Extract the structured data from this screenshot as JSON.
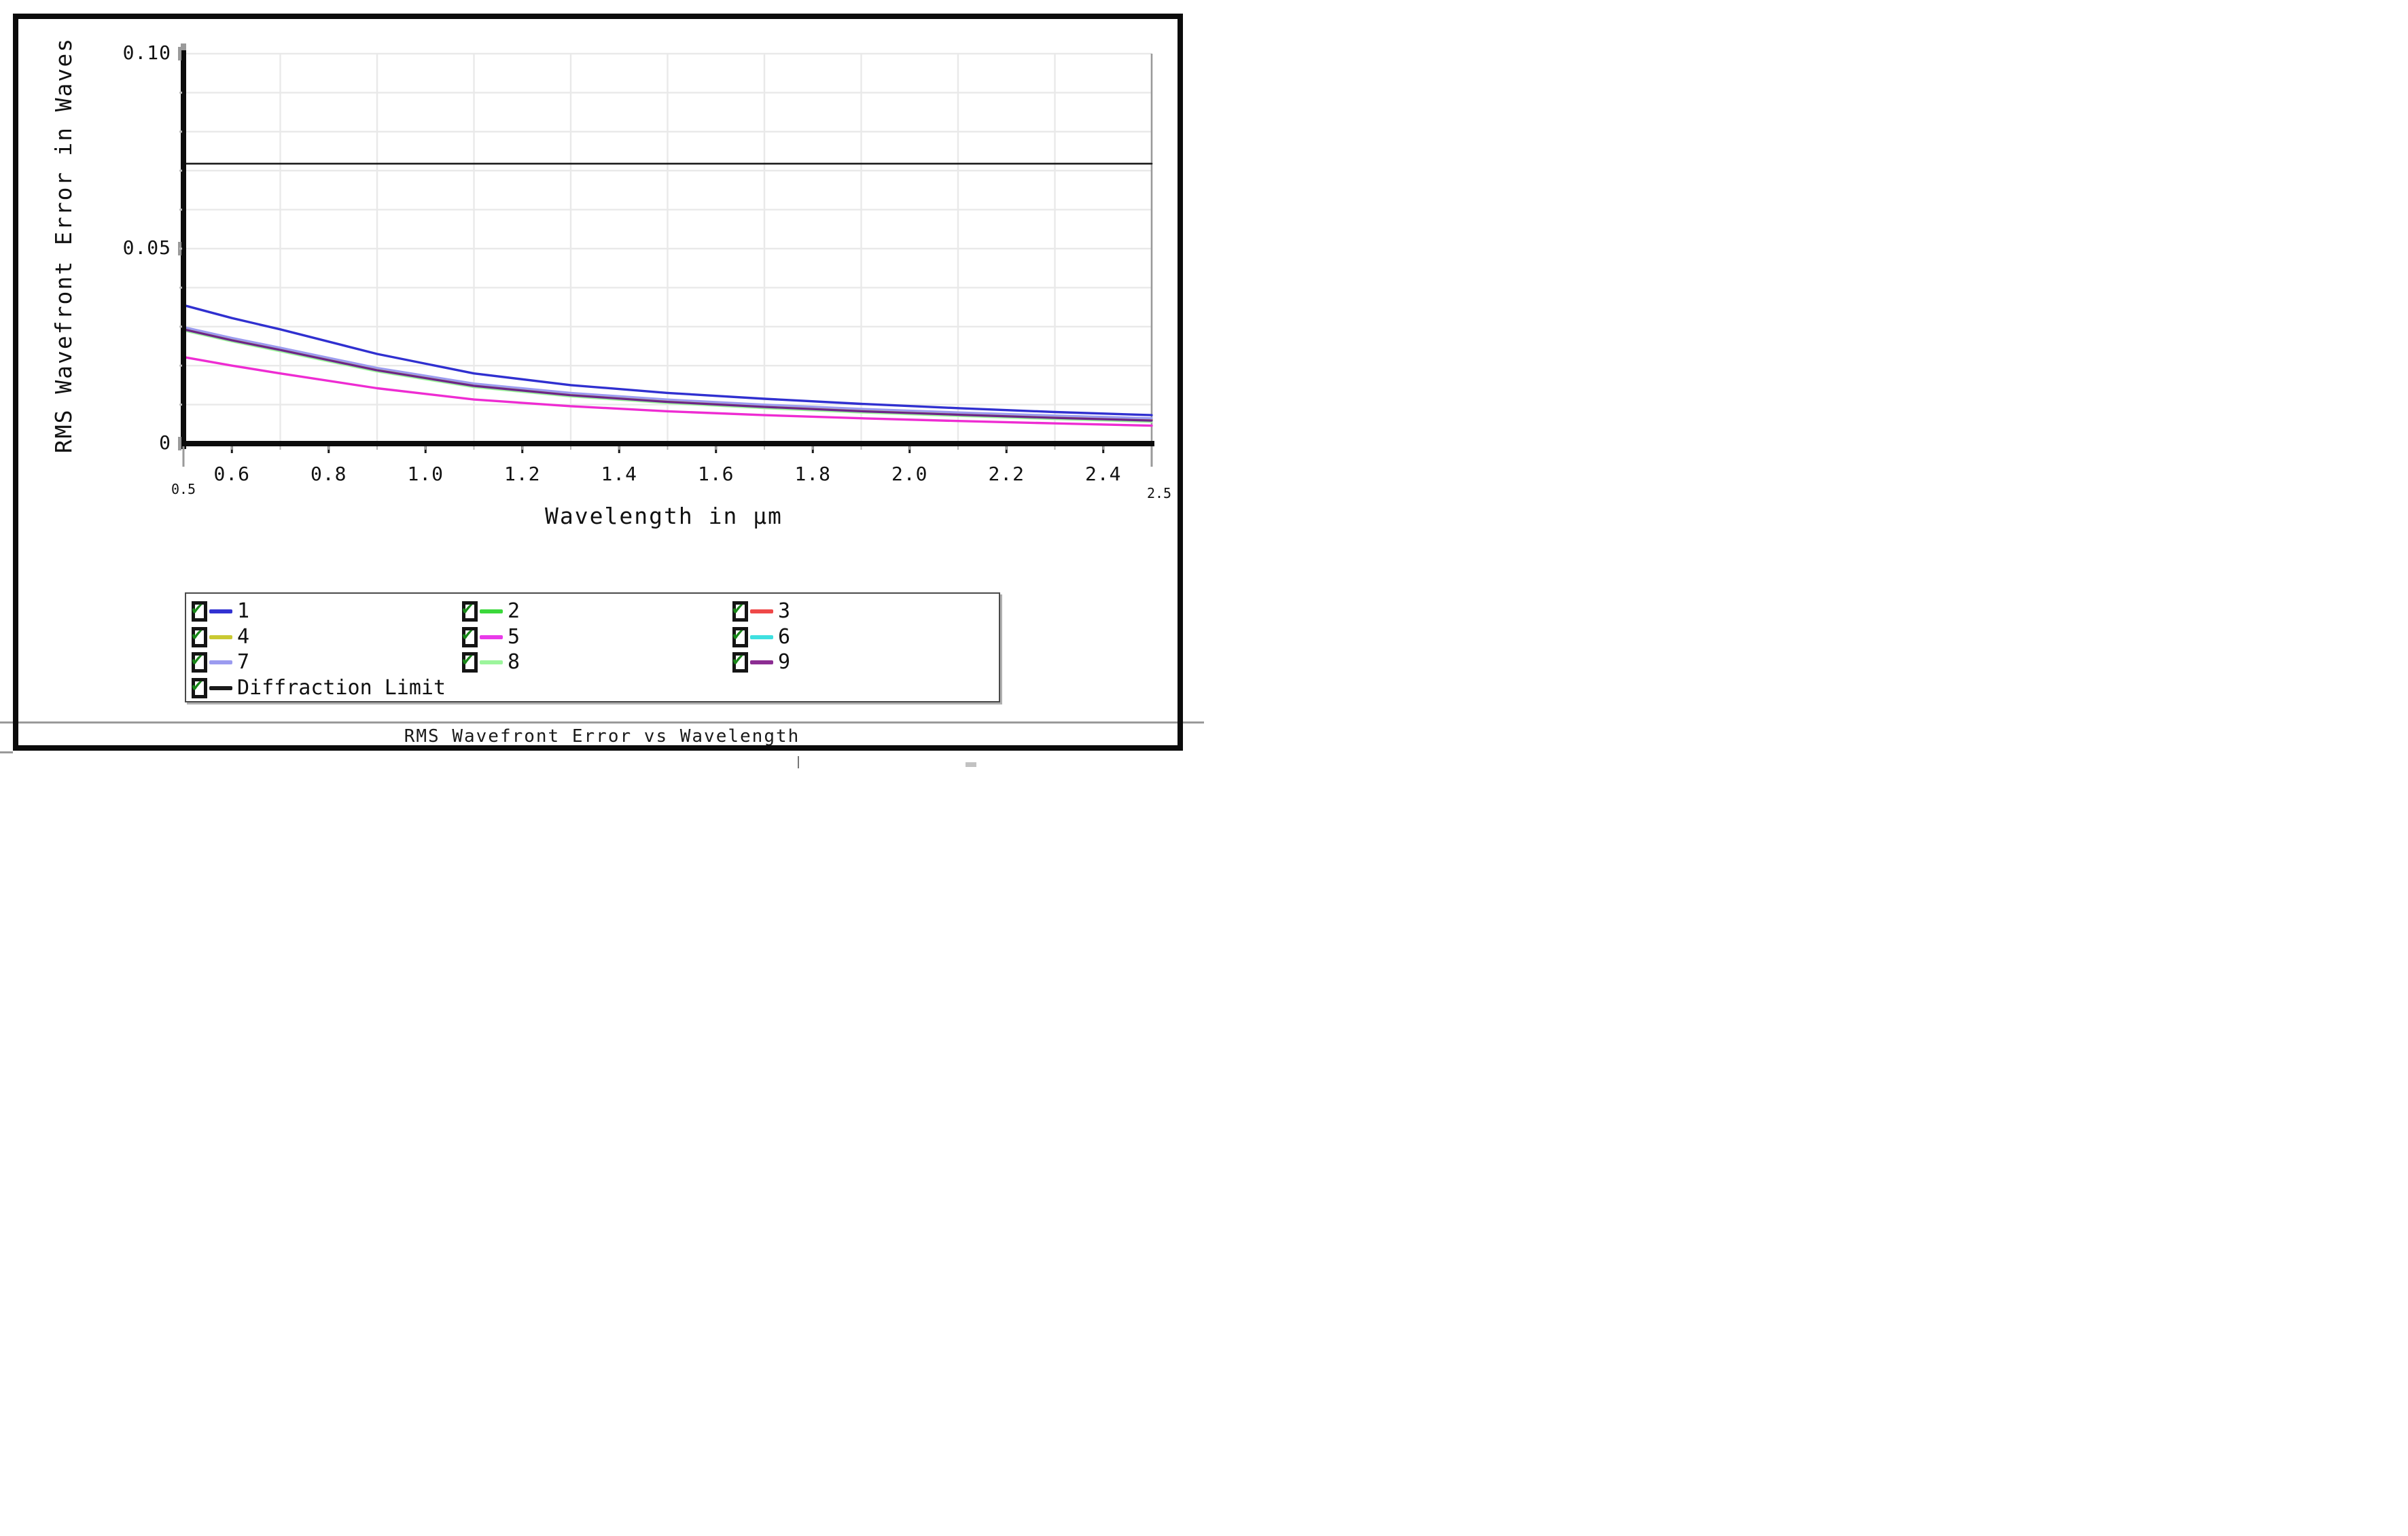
{
  "window": {
    "background": "#ffffff",
    "frame_color": "#0b0b0b"
  },
  "footer": {
    "title": "RMS Wavefront Error vs Wavelength"
  },
  "axes": {
    "y_title": "RMS Wavefront Error in Waves",
    "x_title": "Wavelength in μm",
    "y_tick_labels": [
      "0.10",
      "0.05",
      "0"
    ],
    "y_tick_values": [
      0.1,
      0.05,
      0
    ],
    "x_tick_labels": [
      "0.6",
      "0.8",
      "1.0",
      "1.2",
      "1.4",
      "1.6",
      "1.8",
      "2.0",
      "2.2",
      "2.4"
    ],
    "x_tick_values": [
      0.6,
      0.8,
      1.0,
      1.2,
      1.4,
      1.6,
      1.8,
      2.0,
      2.2,
      2.4
    ],
    "x_end_labels": [
      "0.5",
      "2.5"
    ]
  },
  "legend": {
    "checkbox_check_color": "#178717",
    "items": [
      {
        "label": "1",
        "color": "#3232d2",
        "checked": true,
        "row": 0,
        "col": 0
      },
      {
        "label": "2",
        "color": "#3bd83b",
        "checked": true,
        "row": 0,
        "col": 1
      },
      {
        "label": "3",
        "color": "#ef4848",
        "checked": true,
        "row": 0,
        "col": 2
      },
      {
        "label": "4",
        "color": "#c9c932",
        "checked": true,
        "row": 1,
        "col": 0
      },
      {
        "label": "5",
        "color": "#e93ae9",
        "checked": true,
        "row": 1,
        "col": 1
      },
      {
        "label": "6",
        "color": "#3fe0e0",
        "checked": true,
        "row": 1,
        "col": 2
      },
      {
        "label": "7",
        "color": "#9b9bf0",
        "checked": true,
        "row": 2,
        "col": 0
      },
      {
        "label": "8",
        "color": "#9cf59c",
        "checked": true,
        "row": 2,
        "col": 1
      },
      {
        "label": "9",
        "color": "#8c2d92",
        "checked": true,
        "row": 2,
        "col": 2
      },
      {
        "label": "Diffraction Limit",
        "color": "#1a1a1a",
        "checked": true,
        "row": 3,
        "col": 0
      }
    ]
  },
  "chart_data": {
    "type": "line",
    "title": "RMS Wavefront Error vs Wavelength",
    "xlabel": "Wavelength in μm",
    "ylabel": "RMS Wavefront Error in Waves",
    "xlim": [
      0.5,
      2.5
    ],
    "ylim": [
      0,
      0.1
    ],
    "grid": true,
    "x_grid_step": 0.2,
    "y_grid_step": 0.01,
    "legend_position": "bottom",
    "x": [
      0.5,
      0.6,
      0.7,
      0.9,
      1.1,
      1.3,
      1.5,
      1.7,
      1.9,
      2.1,
      2.3,
      2.5
    ],
    "series": [
      {
        "name": "1",
        "color": "#3030d0",
        "width": 3.4,
        "values": [
          0.0355,
          0.0322,
          0.0293,
          0.023,
          0.018,
          0.015,
          0.013,
          0.0115,
          0.0102,
          0.0091,
          0.0081,
          0.0073
        ]
      },
      {
        "name": "2",
        "color": "#3bd83b",
        "width": 3.2,
        "values": [
          0.0296,
          0.0268,
          0.0243,
          0.0191,
          0.0151,
          0.0127,
          0.011,
          0.0097,
          0.0086,
          0.0077,
          0.0069,
          0.0062
        ]
      },
      {
        "name": "3",
        "color": "#ef4848",
        "width": 3.2,
        "values": [
          0.0295,
          0.0267,
          0.0242,
          0.019,
          0.015,
          0.0126,
          0.0109,
          0.0096,
          0.0085,
          0.0076,
          0.0068,
          0.0061
        ]
      },
      {
        "name": "4",
        "color": "#c9c932",
        "width": 3.2,
        "values": [
          0.0294,
          0.0266,
          0.0241,
          0.0189,
          0.0149,
          0.0125,
          0.0108,
          0.0095,
          0.0084,
          0.0075,
          0.0067,
          0.006
        ]
      },
      {
        "name": "5",
        "color": "#ee2cd2",
        "width": 3.4,
        "values": [
          0.0222,
          0.02,
          0.018,
          0.0142,
          0.0113,
          0.0096,
          0.0083,
          0.0073,
          0.0065,
          0.0058,
          0.0052,
          0.0046
        ]
      },
      {
        "name": "6",
        "color": "#3fe0e0",
        "width": 3.2,
        "values": [
          0.0292,
          0.0264,
          0.0239,
          0.0187,
          0.0147,
          0.0123,
          0.0106,
          0.0093,
          0.0082,
          0.0073,
          0.0065,
          0.0058
        ]
      },
      {
        "name": "7",
        "color": "#9b9bf0",
        "width": 3.2,
        "values": [
          0.0299,
          0.0271,
          0.0246,
          0.0194,
          0.0154,
          0.013,
          0.0113,
          0.01,
          0.0089,
          0.008,
          0.0072,
          0.0065
        ]
      },
      {
        "name": "8",
        "color": "#9cf59c",
        "width": 3.2,
        "values": [
          0.029,
          0.0262,
          0.0237,
          0.0185,
          0.0145,
          0.0121,
          0.0104,
          0.0091,
          0.008,
          0.0071,
          0.0063,
          0.0056
        ]
      },
      {
        "name": "9",
        "color": "#6d2488",
        "width": 3.2,
        "values": [
          0.0293,
          0.0265,
          0.024,
          0.0188,
          0.0148,
          0.0124,
          0.0107,
          0.0094,
          0.0083,
          0.0074,
          0.0066,
          0.0059
        ]
      },
      {
        "name": "Diffraction Limit",
        "color": "#1a1a1a",
        "width": 2.6,
        "values": [
          0.0718,
          0.0718,
          0.0718,
          0.0718,
          0.0718,
          0.0718,
          0.0718,
          0.0718,
          0.0718,
          0.0718,
          0.0718,
          0.0718
        ]
      }
    ],
    "draw_order": [
      "2",
      "3",
      "4",
      "6",
      "8",
      "7",
      "9",
      "1",
      "5",
      "Diffraction Limit"
    ]
  }
}
